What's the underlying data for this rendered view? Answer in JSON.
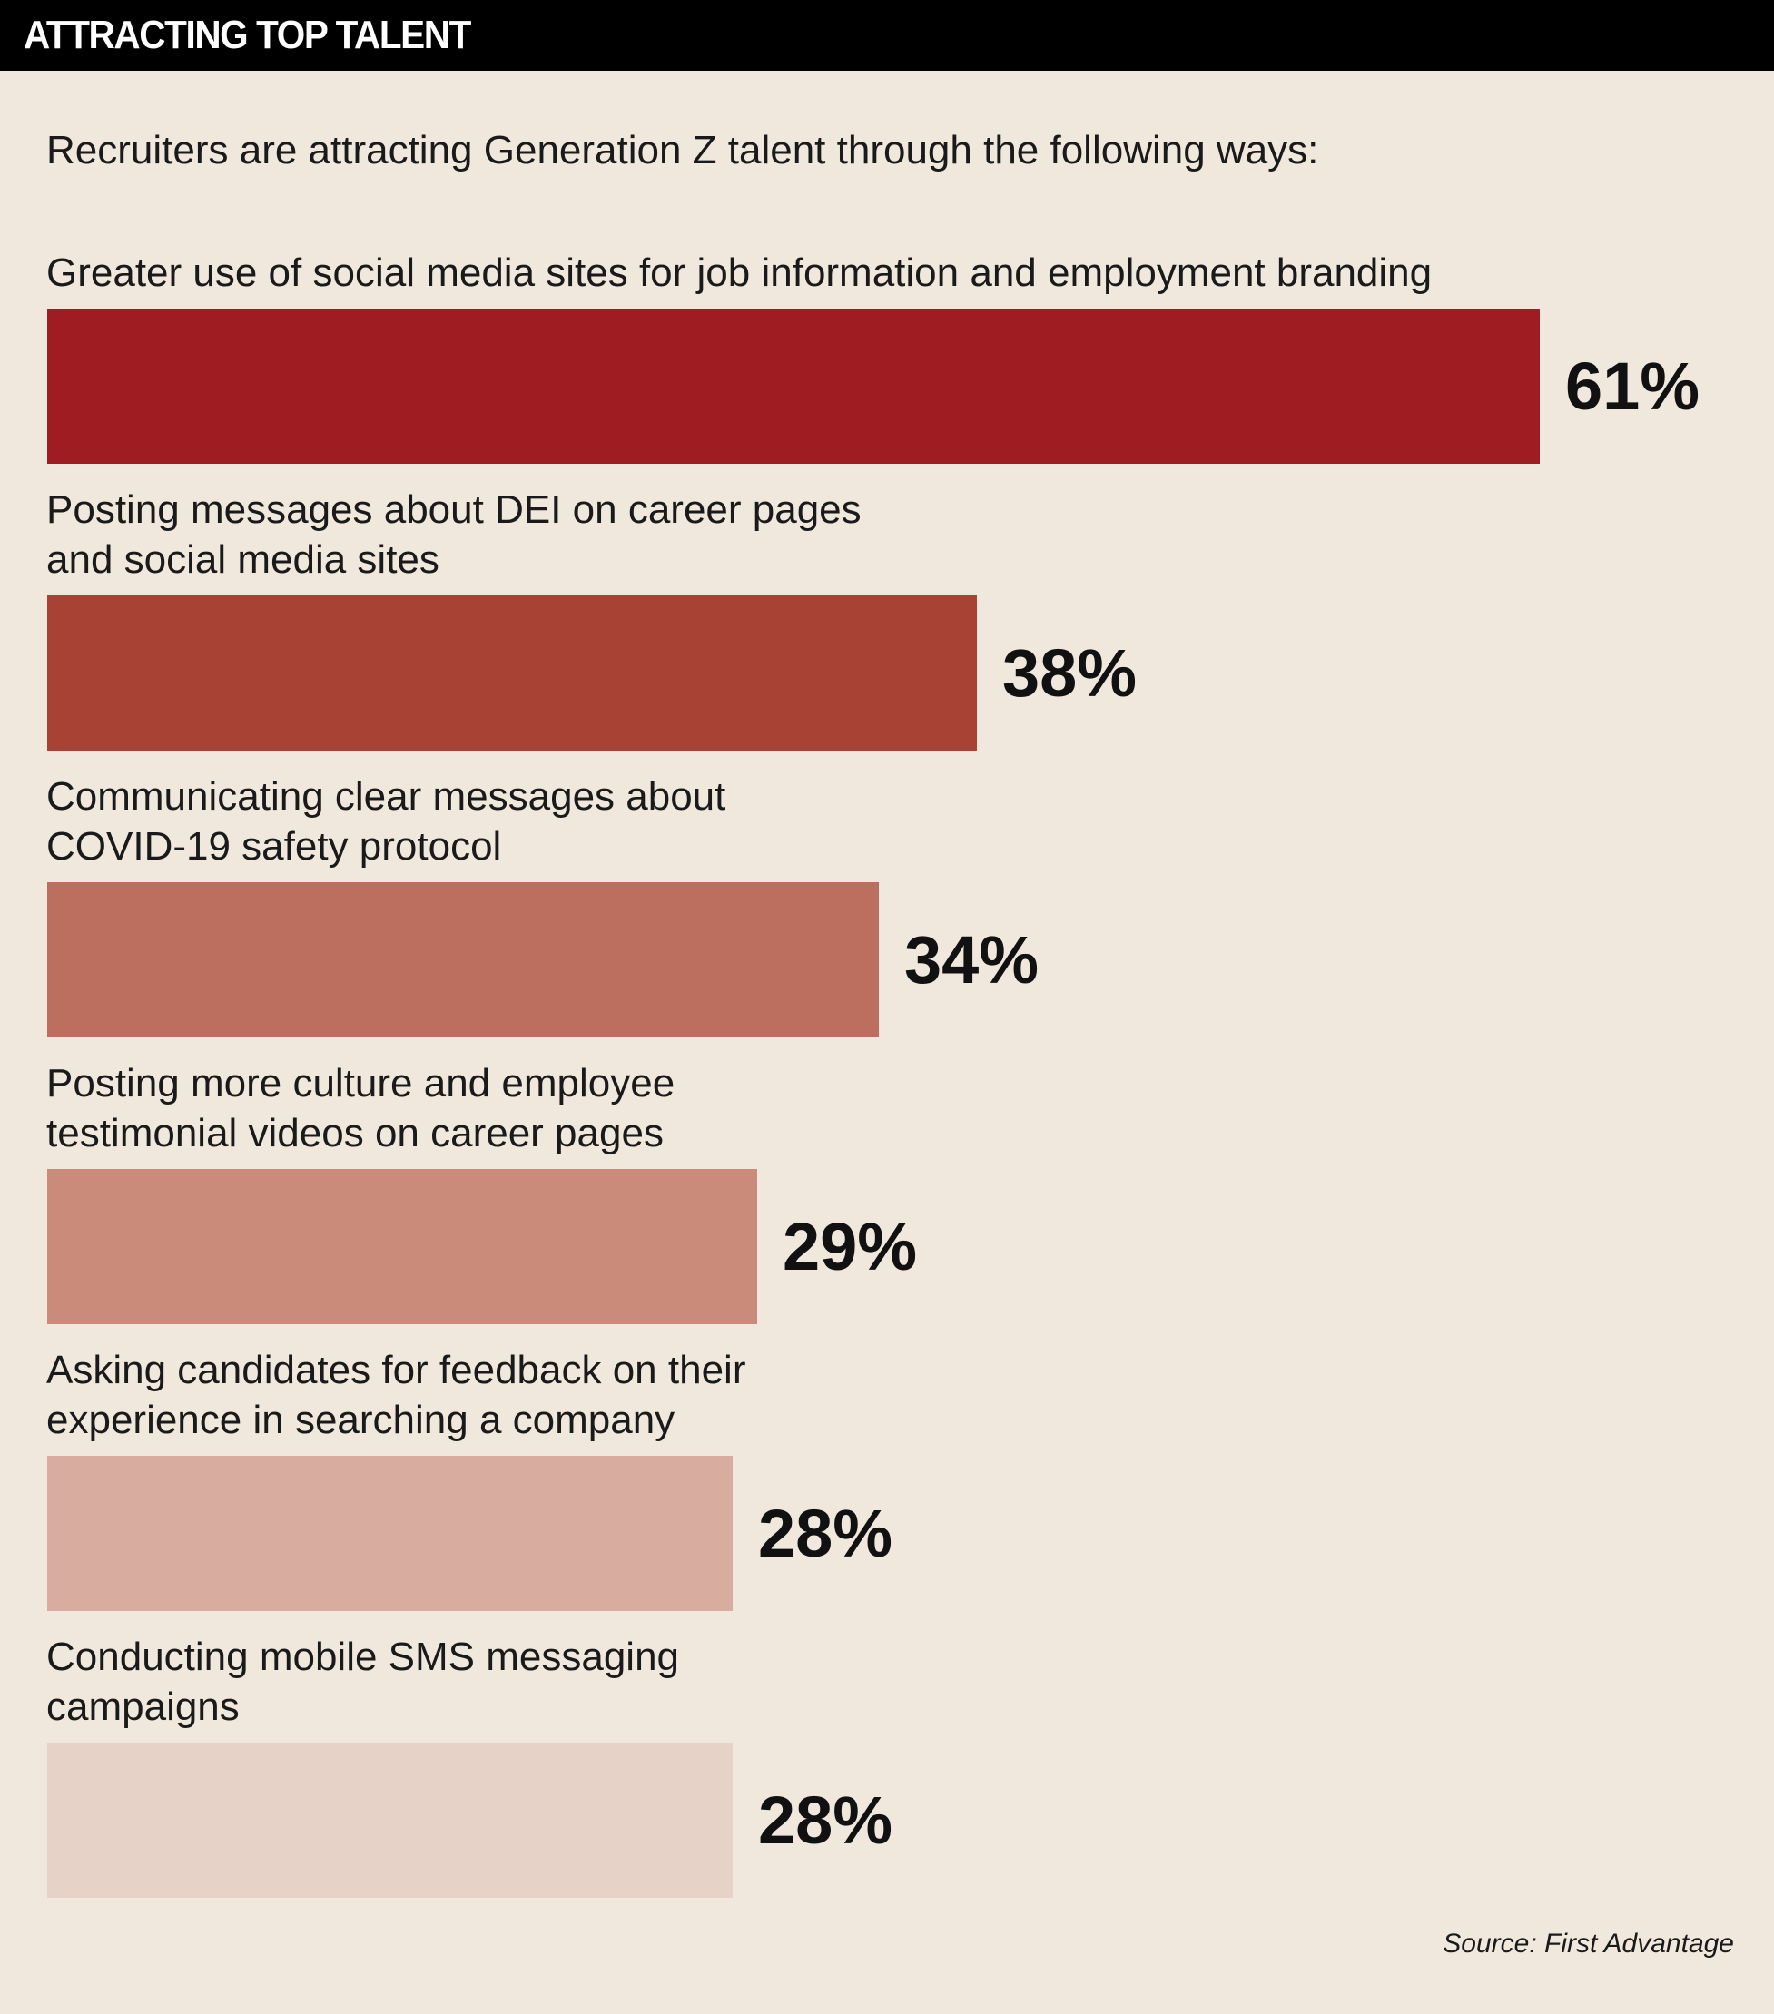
{
  "header": {
    "title": "ATTRACTING TOP TALENT"
  },
  "subtitle": "Recruiters are attracting Generation Z talent through the following ways:",
  "source": "Source: First Advantage",
  "chart_data": {
    "type": "bar",
    "orientation": "horizontal",
    "categories": [
      "Greater use of social media sites for job information and employment branding",
      "Posting messages about DEI on career pages\nand social media sites",
      "Communicating clear messages about\nCOVID-19 safety protocol",
      "Posting more culture and employee\ntestimonial videos on career pages",
      "Asking candidates for feedback on their\nexperience in searching a company",
      "Conducting mobile SMS messaging\ncampaigns"
    ],
    "values": [
      61,
      38,
      34,
      29,
      28,
      28
    ],
    "value_labels": [
      "61%",
      "38%",
      "34%",
      "29%",
      "28%",
      "28%"
    ],
    "colors": [
      "#9e1c22",
      "#a84235",
      "#bd6f5f",
      "#cb8b7b",
      "#d8ad9f",
      "#e6d2c7"
    ],
    "xlim": [
      0,
      61
    ],
    "grid": false,
    "legend": "none"
  }
}
